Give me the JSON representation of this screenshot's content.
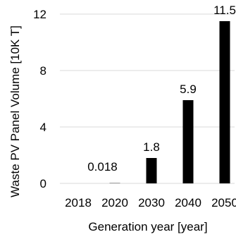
{
  "chart_data": {
    "type": "bar",
    "categories": [
      "2018",
      "2020",
      "2030",
      "2040",
      "2050"
    ],
    "values": [
      0,
      0.018,
      1.8,
      5.9,
      11.5
    ],
    "value_labels": [
      "",
      "0.018",
      "1.8",
      "5.9",
      "11.5"
    ],
    "xlabel": "Generation year [year]",
    "ylabel": "Waste PV Panel Volume [10K T]",
    "ylim": [
      0,
      12
    ],
    "yticks": [
      "0",
      "4",
      "8",
      "12"
    ],
    "ytick_values": [
      0,
      4,
      8,
      12
    ],
    "grid": "horizontal",
    "bar_color": "#000000",
    "grid_color": "#d9d9d9"
  }
}
